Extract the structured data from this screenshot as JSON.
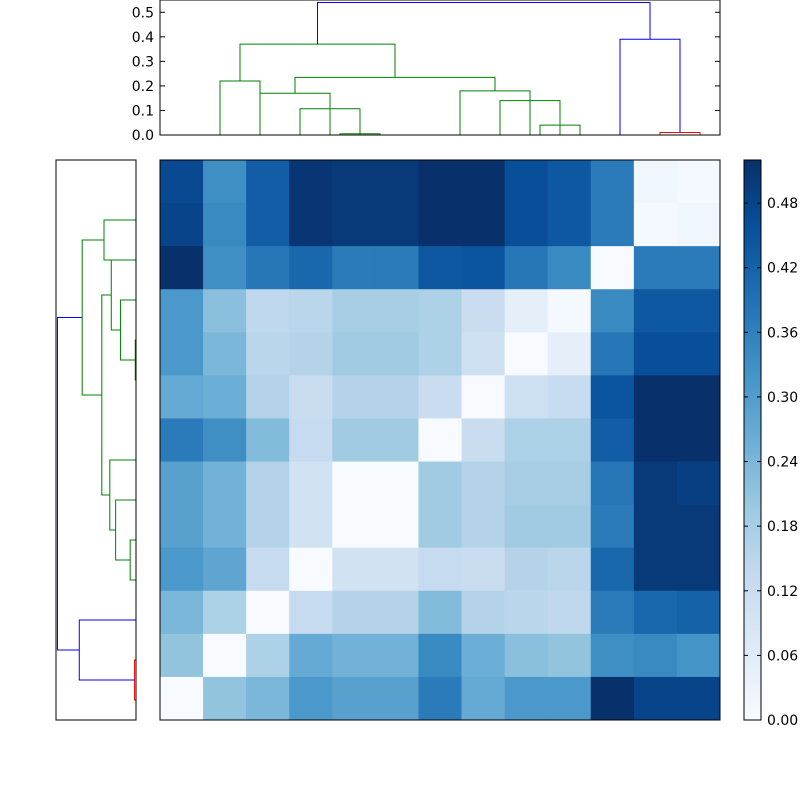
{
  "chart_data": [
    {
      "type": "dendrogram",
      "orientation": "top",
      "ylim": [
        0,
        0.55
      ],
      "yticks": [
        "0.0",
        "0.1",
        "0.2",
        "0.3",
        "0.4",
        "0.5"
      ],
      "ytick_values": [
        0,
        0.1,
        0.2,
        0.3,
        0.4,
        0.5
      ],
      "links": [
        {
          "x": [
            1.5,
            1.5,
            2.5,
            2.5
          ],
          "y": [
            0,
            0.22,
            0.22,
            0
          ],
          "color": "#008000"
        },
        {
          "x": [
            4.5,
            4.5,
            5.5,
            5.5
          ],
          "y": [
            0,
            0.005,
            0.005,
            0
          ],
          "color": "#008000"
        },
        {
          "x": [
            3.5,
            3.5,
            5.0,
            5.0
          ],
          "y": [
            0,
            0.107,
            0.107,
            0
          ],
          "color": "#008000"
        },
        {
          "x": [
            2.5,
            2.5,
            4.25,
            4.25
          ],
          "y": [
            0,
            0.17,
            0.17,
            0
          ],
          "color": "#008000"
        },
        {
          "x": [
            9.5,
            9.5,
            10.5,
            10.5
          ],
          "y": [
            0,
            0.04,
            0.04,
            0
          ],
          "color": "#008000"
        },
        {
          "x": [
            8.5,
            8.5,
            10.0,
            10.0
          ],
          "y": [
            0,
            0.14,
            0.14,
            0
          ],
          "color": "#008000"
        },
        {
          "x": [
            7.5,
            7.5,
            9.25,
            9.25
          ],
          "y": [
            0,
            0.18,
            0.18,
            0
          ],
          "color": "#008000"
        },
        {
          "x": [
            3.375,
            3.375,
            8.375,
            8.375
          ],
          "y": [
            0.17,
            0.235,
            0.235,
            0.18
          ],
          "color": "#008000"
        },
        {
          "x": [
            2.0,
            2.0,
            5.875,
            5.875
          ],
          "y": [
            0.22,
            0.37,
            0.37,
            0.235
          ],
          "color": "#008000"
        },
        {
          "x": [
            12.5,
            12.5,
            13.5,
            13.5
          ],
          "y": [
            0,
            0.01,
            0.01,
            0
          ],
          "color": "#ff0000"
        },
        {
          "x": [
            11.5,
            11.5,
            13.0,
            13.0
          ],
          "y": [
            0,
            0.39,
            0.39,
            0.01
          ],
          "color": "#0000ff"
        },
        {
          "x": [
            3.9375,
            3.9375,
            12.25,
            12.25
          ],
          "y": [
            0.37,
            0.54,
            0.54,
            0.39
          ],
          "color": "#0000ff"
        }
      ]
    },
    {
      "type": "dendrogram",
      "orientation": "left",
      "links": [
        {
          "y": [
            12.5,
            12.5,
            13.5,
            13.5
          ],
          "x": [
            0,
            0.01,
            0.01,
            0
          ],
          "color": "#ff0000"
        },
        {
          "y": [
            11.5,
            11.5,
            13.0,
            13.0
          ],
          "x": [
            0,
            0.39,
            0.39,
            0.01
          ],
          "color": "#0000ff"
        },
        {
          "y": [
            4.5,
            4.5,
            5.5,
            5.5
          ],
          "x": [
            0,
            0.005,
            0.005,
            0
          ],
          "color": "#008000"
        },
        {
          "y": [
            3.5,
            3.5,
            5.0,
            5.0
          ],
          "x": [
            0,
            0.107,
            0.107,
            0.005
          ],
          "color": "#008000"
        },
        {
          "y": [
            2.5,
            2.5,
            4.25,
            4.25
          ],
          "x": [
            0,
            0.17,
            0.17,
            0.107
          ],
          "color": "#008000"
        },
        {
          "y": [
            9.5,
            9.5,
            10.5,
            10.5
          ],
          "x": [
            0,
            0.04,
            0.04,
            0
          ],
          "color": "#008000"
        },
        {
          "y": [
            8.5,
            8.5,
            10.0,
            10.0
          ],
          "x": [
            0,
            0.14,
            0.14,
            0.04
          ],
          "color": "#008000"
        },
        {
          "y": [
            7.5,
            7.5,
            9.25,
            9.25
          ],
          "x": [
            0,
            0.18,
            0.18,
            0.14
          ],
          "color": "#008000"
        },
        {
          "y": [
            3.375,
            3.375,
            8.375,
            8.375
          ],
          "x": [
            0.17,
            0.235,
            0.235,
            0.18
          ],
          "color": "#008000"
        },
        {
          "y": [
            1.5,
            1.5,
            2.5,
            2.5
          ],
          "x": [
            0,
            0.22,
            0.22,
            0
          ],
          "color": "#008000"
        },
        {
          "y": [
            2.0,
            2.0,
            5.875,
            5.875
          ],
          "x": [
            0.22,
            0.37,
            0.37,
            0.235
          ],
          "color": "#008000"
        },
        {
          "y": [
            3.9375,
            3.9375,
            12.25,
            12.25
          ],
          "x": [
            0.37,
            0.54,
            0.54,
            0.39
          ],
          "color": "#0000ff"
        }
      ]
    },
    {
      "type": "heatmap",
      "colormap": "Blues",
      "vmin": 0,
      "vmax": 0.52,
      "colorbar_ticks": [
        "0.00",
        "0.06",
        "0.12",
        "0.18",
        "0.24",
        "0.30",
        "0.36",
        "0.42",
        "0.48"
      ],
      "colorbar_tick_values": [
        0,
        0.06,
        0.12,
        0.18,
        0.24,
        0.3,
        0.36,
        0.42,
        0.48
      ],
      "values": [
        [
          0.47,
          0.33,
          0.43,
          0.51,
          0.5,
          0.5,
          0.52,
          0.52,
          0.46,
          0.44,
          0.37,
          0.02,
          0.01
        ],
        [
          0.48,
          0.34,
          0.43,
          0.51,
          0.5,
          0.5,
          0.52,
          0.52,
          0.46,
          0.44,
          0.37,
          0.01,
          0.02
        ],
        [
          0.52,
          0.33,
          0.38,
          0.41,
          0.37,
          0.37,
          0.44,
          0.45,
          0.38,
          0.34,
          0.0,
          0.37,
          0.37
        ],
        [
          0.31,
          0.22,
          0.14,
          0.15,
          0.18,
          0.18,
          0.17,
          0.12,
          0.05,
          0.01,
          0.34,
          0.44,
          0.44
        ],
        [
          0.31,
          0.24,
          0.15,
          0.16,
          0.19,
          0.19,
          0.17,
          0.11,
          0.0,
          0.05,
          0.38,
          0.46,
          0.46
        ],
        [
          0.27,
          0.26,
          0.16,
          0.12,
          0.16,
          0.16,
          0.12,
          0.0,
          0.11,
          0.13,
          0.45,
          0.52,
          0.52
        ],
        [
          0.37,
          0.33,
          0.23,
          0.13,
          0.19,
          0.19,
          0.0,
          0.12,
          0.17,
          0.17,
          0.43,
          0.53,
          0.53
        ],
        [
          0.29,
          0.25,
          0.16,
          0.1,
          0.0,
          0.0,
          0.19,
          0.16,
          0.18,
          0.18,
          0.38,
          0.5,
          0.49
        ],
        [
          0.29,
          0.25,
          0.16,
          0.1,
          0.0,
          0.0,
          0.19,
          0.16,
          0.19,
          0.19,
          0.37,
          0.5,
          0.5
        ],
        [
          0.31,
          0.28,
          0.13,
          0.0,
          0.1,
          0.1,
          0.13,
          0.12,
          0.16,
          0.15,
          0.41,
          0.5,
          0.5
        ],
        [
          0.24,
          0.17,
          0.0,
          0.13,
          0.16,
          0.16,
          0.23,
          0.16,
          0.15,
          0.14,
          0.37,
          0.41,
          0.42
        ],
        [
          0.21,
          0.0,
          0.17,
          0.27,
          0.25,
          0.25,
          0.34,
          0.26,
          0.22,
          0.21,
          0.33,
          0.34,
          0.32
        ],
        [
          0.0,
          0.21,
          0.24,
          0.31,
          0.29,
          0.29,
          0.37,
          0.27,
          0.31,
          0.31,
          0.52,
          0.48,
          0.48
        ]
      ]
    }
  ]
}
